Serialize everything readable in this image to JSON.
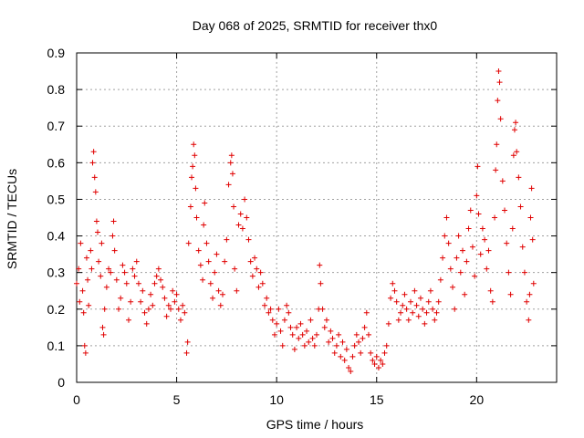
{
  "chart_data": {
    "type": "scatter",
    "title": "Day 068 of 2025, SRMTID for receiver thx0",
    "xlabel": "GPS time / hours",
    "ylabel": "SRMTID / TECUs",
    "xlim": [
      0,
      24
    ],
    "ylim": [
      0,
      0.9
    ],
    "xticks": [
      0,
      5,
      10,
      15,
      20
    ],
    "xtick_labels": [
      "0",
      "5",
      "10",
      "15",
      "20"
    ],
    "yticks": [
      0,
      0.1,
      0.2,
      0.3,
      0.4,
      0.5,
      0.6,
      0.7,
      0.8,
      0.9
    ],
    "ytick_labels": [
      "0",
      "0.1",
      "0.2",
      "0.3",
      "0.4",
      "0.5",
      "0.6",
      "0.7",
      "0.8",
      "0.9"
    ],
    "grid": true,
    "marker": "+",
    "marker_color": "#e00000",
    "series": [
      {
        "name": "SRMTID",
        "points": [
          [
            0.0,
            0.27
          ],
          [
            0.1,
            0.31
          ],
          [
            0.15,
            0.22
          ],
          [
            0.2,
            0.38
          ],
          [
            0.3,
            0.25
          ],
          [
            0.35,
            0.19
          ],
          [
            0.4,
            0.1
          ],
          [
            0.45,
            0.08
          ],
          [
            0.5,
            0.34
          ],
          [
            0.55,
            0.28
          ],
          [
            0.6,
            0.21
          ],
          [
            0.7,
            0.36
          ],
          [
            0.75,
            0.31
          ],
          [
            0.8,
            0.6
          ],
          [
            0.85,
            0.63
          ],
          [
            0.9,
            0.56
          ],
          [
            0.95,
            0.52
          ],
          [
            1.0,
            0.44
          ],
          [
            1.05,
            0.41
          ],
          [
            1.1,
            0.33
          ],
          [
            1.2,
            0.29
          ],
          [
            1.25,
            0.38
          ],
          [
            1.3,
            0.15
          ],
          [
            1.35,
            0.13
          ],
          [
            1.4,
            0.2
          ],
          [
            1.5,
            0.26
          ],
          [
            1.6,
            0.31
          ],
          [
            1.7,
            0.3
          ],
          [
            1.8,
            0.4
          ],
          [
            1.85,
            0.44
          ],
          [
            1.9,
            0.36
          ],
          [
            2.0,
            0.28
          ],
          [
            2.1,
            0.2
          ],
          [
            2.2,
            0.23
          ],
          [
            2.3,
            0.32
          ],
          [
            2.4,
            0.3
          ],
          [
            2.5,
            0.27
          ],
          [
            2.6,
            0.17
          ],
          [
            2.7,
            0.22
          ],
          [
            2.8,
            0.31
          ],
          [
            2.9,
            0.29
          ],
          [
            3.0,
            0.33
          ],
          [
            3.1,
            0.27
          ],
          [
            3.2,
            0.22
          ],
          [
            3.3,
            0.25
          ],
          [
            3.4,
            0.19
          ],
          [
            3.5,
            0.16
          ],
          [
            3.6,
            0.2
          ],
          [
            3.7,
            0.24
          ],
          [
            3.8,
            0.21
          ],
          [
            3.9,
            0.27
          ],
          [
            4.0,
            0.29
          ],
          [
            4.1,
            0.31
          ],
          [
            4.2,
            0.28
          ],
          [
            4.3,
            0.26
          ],
          [
            4.4,
            0.23
          ],
          [
            4.5,
            0.18
          ],
          [
            4.6,
            0.21
          ],
          [
            4.7,
            0.2
          ],
          [
            4.8,
            0.25
          ],
          [
            4.9,
            0.22
          ],
          [
            5.0,
            0.24
          ],
          [
            5.1,
            0.2
          ],
          [
            5.2,
            0.17
          ],
          [
            5.3,
            0.21
          ],
          [
            5.4,
            0.19
          ],
          [
            5.5,
            0.08
          ],
          [
            5.55,
            0.11
          ],
          [
            5.6,
            0.38
          ],
          [
            5.7,
            0.48
          ],
          [
            5.75,
            0.56
          ],
          [
            5.8,
            0.59
          ],
          [
            5.85,
            0.65
          ],
          [
            5.9,
            0.62
          ],
          [
            5.95,
            0.53
          ],
          [
            6.0,
            0.45
          ],
          [
            6.1,
            0.36
          ],
          [
            6.2,
            0.32
          ],
          [
            6.3,
            0.28
          ],
          [
            6.35,
            0.43
          ],
          [
            6.4,
            0.49
          ],
          [
            6.5,
            0.38
          ],
          [
            6.6,
            0.33
          ],
          [
            6.7,
            0.27
          ],
          [
            6.8,
            0.23
          ],
          [
            6.9,
            0.3
          ],
          [
            7.0,
            0.35
          ],
          [
            7.1,
            0.25
          ],
          [
            7.2,
            0.21
          ],
          [
            7.3,
            0.24
          ],
          [
            7.4,
            0.33
          ],
          [
            7.5,
            0.39
          ],
          [
            7.6,
            0.54
          ],
          [
            7.7,
            0.6
          ],
          [
            7.75,
            0.62
          ],
          [
            7.8,
            0.57
          ],
          [
            7.85,
            0.48
          ],
          [
            7.9,
            0.31
          ],
          [
            8.0,
            0.25
          ],
          [
            8.1,
            0.43
          ],
          [
            8.2,
            0.46
          ],
          [
            8.3,
            0.42
          ],
          [
            8.4,
            0.5
          ],
          [
            8.5,
            0.45
          ],
          [
            8.6,
            0.39
          ],
          [
            8.7,
            0.33
          ],
          [
            8.8,
            0.29
          ],
          [
            8.9,
            0.34
          ],
          [
            9.0,
            0.31
          ],
          [
            9.1,
            0.26
          ],
          [
            9.2,
            0.3
          ],
          [
            9.3,
            0.27
          ],
          [
            9.4,
            0.21
          ],
          [
            9.5,
            0.23
          ],
          [
            9.6,
            0.19
          ],
          [
            9.7,
            0.2
          ],
          [
            9.8,
            0.17
          ],
          [
            9.9,
            0.13
          ],
          [
            10.0,
            0.16
          ],
          [
            10.1,
            0.2
          ],
          [
            10.2,
            0.14
          ],
          [
            10.3,
            0.1
          ],
          [
            10.4,
            0.17
          ],
          [
            10.5,
            0.21
          ],
          [
            10.6,
            0.19
          ],
          [
            10.7,
            0.15
          ],
          [
            10.8,
            0.13
          ],
          [
            10.9,
            0.09
          ],
          [
            11.0,
            0.15
          ],
          [
            11.1,
            0.12
          ],
          [
            11.2,
            0.16
          ],
          [
            11.3,
            0.13
          ],
          [
            11.4,
            0.1
          ],
          [
            11.5,
            0.14
          ],
          [
            11.6,
            0.11
          ],
          [
            11.7,
            0.17
          ],
          [
            11.8,
            0.12
          ],
          [
            11.9,
            0.1
          ],
          [
            12.0,
            0.13
          ],
          [
            12.1,
            0.2
          ],
          [
            12.15,
            0.32
          ],
          [
            12.2,
            0.27
          ],
          [
            12.3,
            0.2
          ],
          [
            12.4,
            0.15
          ],
          [
            12.5,
            0.17
          ],
          [
            12.6,
            0.11
          ],
          [
            12.7,
            0.14
          ],
          [
            12.8,
            0.12
          ],
          [
            12.9,
            0.08
          ],
          [
            13.0,
            0.1
          ],
          [
            13.1,
            0.13
          ],
          [
            13.2,
            0.07
          ],
          [
            13.3,
            0.11
          ],
          [
            13.4,
            0.06
          ],
          [
            13.5,
            0.09
          ],
          [
            13.6,
            0.04
          ],
          [
            13.7,
            0.03
          ],
          [
            13.8,
            0.07
          ],
          [
            13.9,
            0.1
          ],
          [
            14.0,
            0.13
          ],
          [
            14.1,
            0.11
          ],
          [
            14.2,
            0.08
          ],
          [
            14.3,
            0.12
          ],
          [
            14.4,
            0.15
          ],
          [
            14.5,
            0.19
          ],
          [
            14.6,
            0.13
          ],
          [
            14.7,
            0.08
          ],
          [
            14.8,
            0.06
          ],
          [
            14.9,
            0.05
          ],
          [
            15.0,
            0.07
          ],
          [
            15.1,
            0.04
          ],
          [
            15.2,
            0.06
          ],
          [
            15.3,
            0.05
          ],
          [
            15.4,
            0.08
          ],
          [
            15.5,
            0.1
          ],
          [
            15.6,
            0.16
          ],
          [
            15.7,
            0.23
          ],
          [
            15.8,
            0.27
          ],
          [
            15.9,
            0.25
          ],
          [
            16.0,
            0.22
          ],
          [
            16.1,
            0.17
          ],
          [
            16.2,
            0.19
          ],
          [
            16.3,
            0.21
          ],
          [
            16.4,
            0.24
          ],
          [
            16.5,
            0.2
          ],
          [
            16.6,
            0.17
          ],
          [
            16.7,
            0.22
          ],
          [
            16.8,
            0.19
          ],
          [
            16.9,
            0.25
          ],
          [
            17.0,
            0.21
          ],
          [
            17.1,
            0.18
          ],
          [
            17.2,
            0.23
          ],
          [
            17.3,
            0.2
          ],
          [
            17.4,
            0.16
          ],
          [
            17.5,
            0.19
          ],
          [
            17.6,
            0.22
          ],
          [
            17.7,
            0.25
          ],
          [
            17.8,
            0.2
          ],
          [
            17.9,
            0.17
          ],
          [
            18.0,
            0.19
          ],
          [
            18.1,
            0.22
          ],
          [
            18.2,
            0.28
          ],
          [
            18.3,
            0.34
          ],
          [
            18.4,
            0.4
          ],
          [
            18.5,
            0.45
          ],
          [
            18.6,
            0.38
          ],
          [
            18.7,
            0.31
          ],
          [
            18.8,
            0.26
          ],
          [
            18.9,
            0.2
          ],
          [
            19.0,
            0.34
          ],
          [
            19.1,
            0.4
          ],
          [
            19.2,
            0.3
          ],
          [
            19.3,
            0.36
          ],
          [
            19.4,
            0.24
          ],
          [
            19.5,
            0.33
          ],
          [
            19.6,
            0.42
          ],
          [
            19.7,
            0.47
          ],
          [
            19.8,
            0.37
          ],
          [
            19.9,
            0.29
          ],
          [
            20.0,
            0.51
          ],
          [
            20.05,
            0.59
          ],
          [
            20.1,
            0.46
          ],
          [
            20.2,
            0.35
          ],
          [
            20.3,
            0.42
          ],
          [
            20.4,
            0.39
          ],
          [
            20.5,
            0.31
          ],
          [
            20.6,
            0.36
          ],
          [
            20.7,
            0.25
          ],
          [
            20.8,
            0.22
          ],
          [
            20.9,
            0.45
          ],
          [
            20.95,
            0.58
          ],
          [
            21.0,
            0.65
          ],
          [
            21.05,
            0.77
          ],
          [
            21.1,
            0.85
          ],
          [
            21.15,
            0.82
          ],
          [
            21.2,
            0.72
          ],
          [
            21.3,
            0.55
          ],
          [
            21.4,
            0.47
          ],
          [
            21.5,
            0.38
          ],
          [
            21.6,
            0.3
          ],
          [
            21.7,
            0.24
          ],
          [
            21.8,
            0.42
          ],
          [
            21.85,
            0.62
          ],
          [
            21.9,
            0.69
          ],
          [
            21.95,
            0.71
          ],
          [
            22.0,
            0.63
          ],
          [
            22.1,
            0.56
          ],
          [
            22.2,
            0.48
          ],
          [
            22.3,
            0.37
          ],
          [
            22.4,
            0.3
          ],
          [
            22.5,
            0.22
          ],
          [
            22.6,
            0.17
          ],
          [
            22.65,
            0.24
          ],
          [
            22.7,
            0.45
          ],
          [
            22.75,
            0.53
          ],
          [
            22.8,
            0.39
          ],
          [
            22.85,
            0.27
          ]
        ]
      }
    ]
  }
}
